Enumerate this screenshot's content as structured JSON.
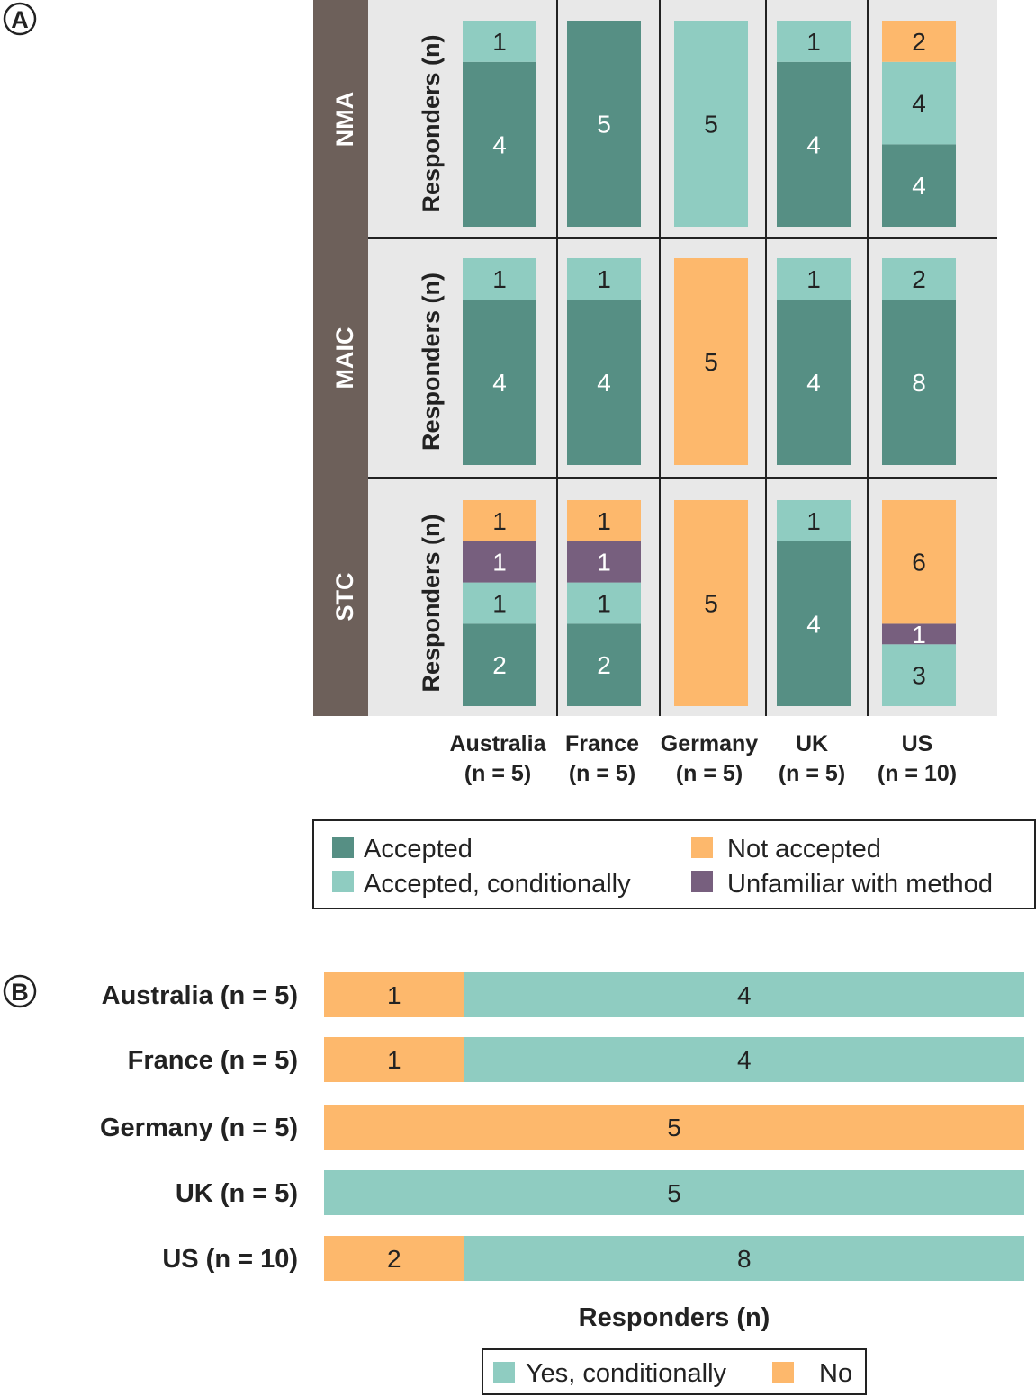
{
  "colors": {
    "accepted": "#568f84",
    "accepted_conditionally": "#8fccc1",
    "not_accepted": "#fdb86c",
    "unfamiliar": "#775f7e",
    "cell_background": "#e8e8e8",
    "method_band": "#6d605a"
  },
  "chart_data": [
    {
      "panel": "A",
      "type": "bar",
      "stacked": true,
      "ylabel": "Responders (n)",
      "categories": [
        "Australia\n(n = 5)",
        "France\n(n = 5)",
        "Germany\n(n = 5)",
        "UK\n(n = 5)",
        "US\n(n = 10)"
      ],
      "category_lines": [
        [
          "Australia",
          "(n = 5)"
        ],
        [
          "France",
          "(n = 5)"
        ],
        [
          "Germany",
          "(n = 5)"
        ],
        [
          "UK",
          "(n = 5)"
        ],
        [
          "US",
          "(n = 10)"
        ]
      ],
      "methods": [
        "NMA",
        "MAIC",
        "STC"
      ],
      "series_names": [
        "Accepted",
        "Accepted, conditionally",
        "Not accepted",
        "Unfamiliar with method"
      ],
      "data": {
        "NMA": {
          "Accepted": [
            4,
            5,
            0,
            4,
            4
          ],
          "Accepted, conditionally": [
            1,
            0,
            5,
            1,
            4
          ],
          "Unfamiliar with method": [
            0,
            0,
            0,
            0,
            0
          ],
          "Not accepted": [
            0,
            0,
            0,
            0,
            2
          ]
        },
        "MAIC": {
          "Accepted": [
            4,
            4,
            0,
            4,
            8
          ],
          "Accepted, conditionally": [
            1,
            1,
            0,
            1,
            2
          ],
          "Unfamiliar with method": [
            0,
            0,
            0,
            0,
            0
          ],
          "Not accepted": [
            0,
            0,
            5,
            0,
            0
          ]
        },
        "STC": {
          "Accepted": [
            2,
            2,
            0,
            4,
            0
          ],
          "Accepted, conditionally": [
            1,
            1,
            0,
            1,
            3
          ],
          "Unfamiliar with method": [
            1,
            1,
            0,
            0,
            1
          ],
          "Not accepted": [
            1,
            1,
            5,
            0,
            6
          ]
        }
      },
      "legend": [
        {
          "label": "Accepted",
          "color_key": "accepted"
        },
        {
          "label": "Not accepted",
          "color_key": "not_accepted"
        },
        {
          "label": "Accepted, conditionally",
          "color_key": "accepted_conditionally"
        },
        {
          "label": "Unfamiliar with method",
          "color_key": "unfamiliar"
        }
      ]
    },
    {
      "panel": "B",
      "type": "bar",
      "orientation": "horizontal",
      "stacked": true,
      "xlabel": "Responders (n)",
      "categories": [
        "Australia (n = 5)",
        "France (n = 5)",
        "Germany (n = 5)",
        "UK (n = 5)",
        "US (n = 10)"
      ],
      "series": [
        {
          "name": "No",
          "values": [
            1,
            1,
            5,
            0,
            2
          ]
        },
        {
          "name": "Yes, conditionally",
          "values": [
            4,
            4,
            0,
            5,
            8
          ]
        }
      ],
      "legend": [
        {
          "label": "Yes, conditionally",
          "color_key": "accepted_conditionally"
        },
        {
          "label": "No",
          "color_key": "not_accepted"
        }
      ]
    }
  ]
}
